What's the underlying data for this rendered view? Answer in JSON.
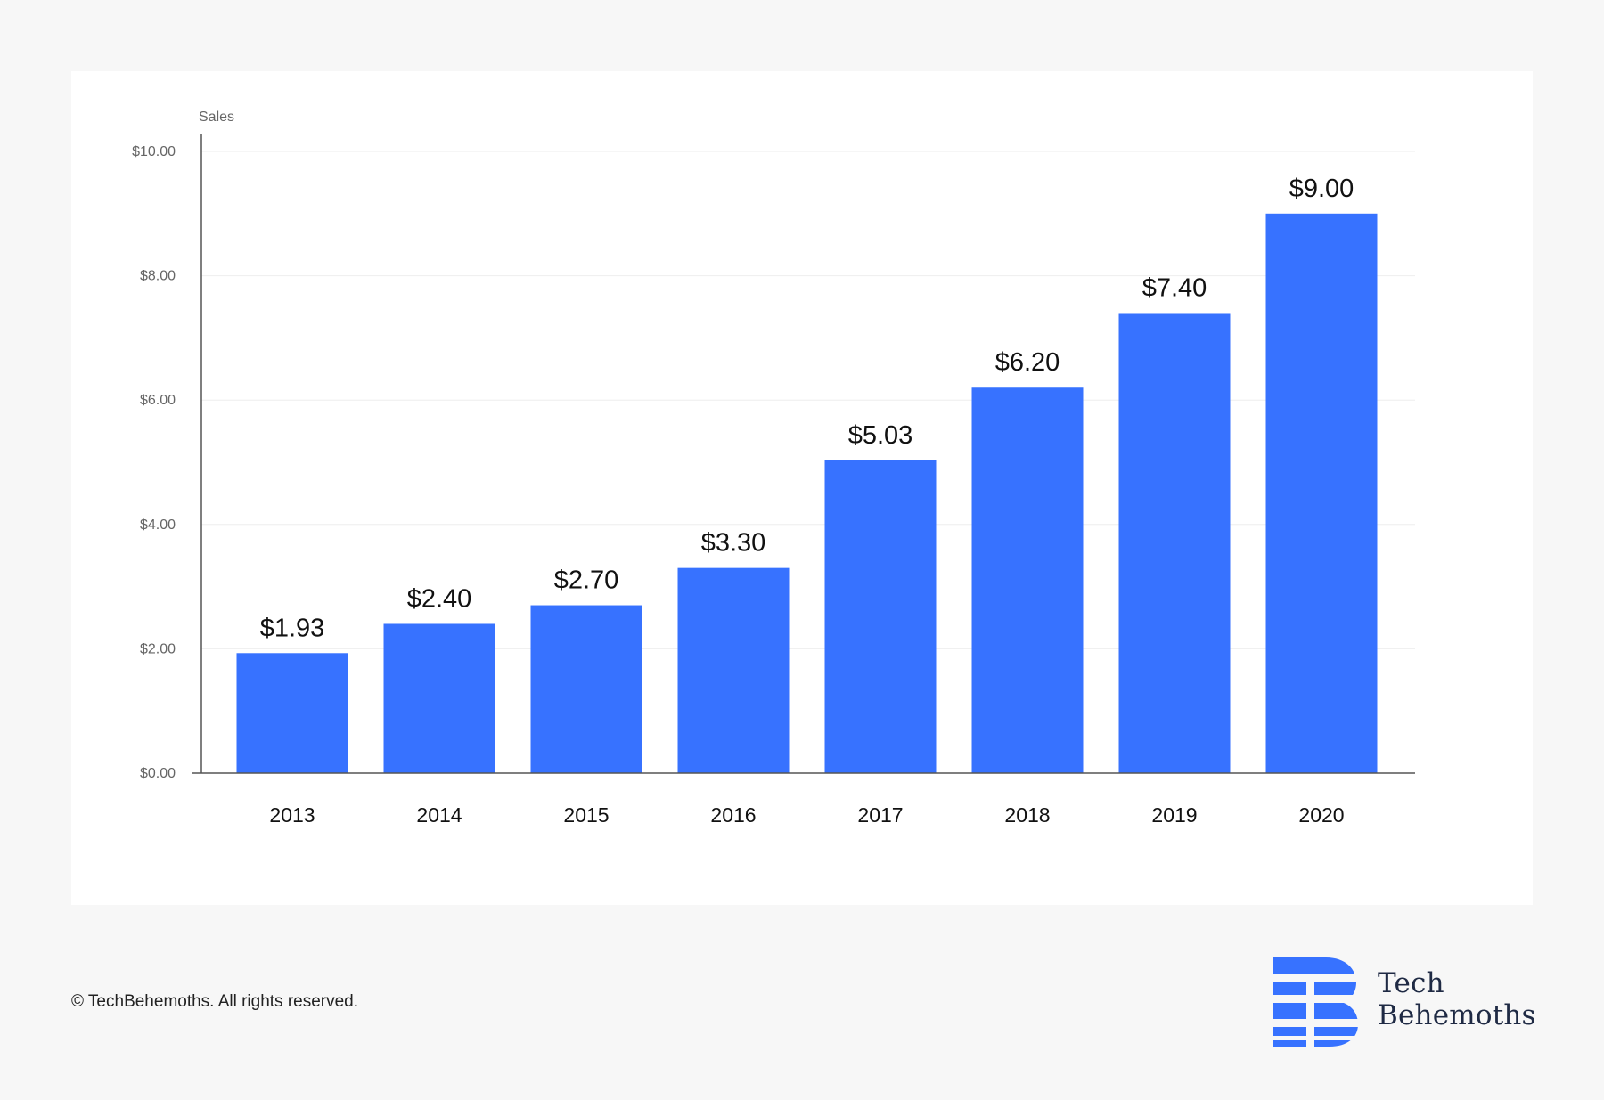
{
  "chart_data": {
    "type": "bar",
    "categories": [
      "2013",
      "2014",
      "2015",
      "2016",
      "2017",
      "2018",
      "2019",
      "2020"
    ],
    "values": [
      1.93,
      2.4,
      2.7,
      3.3,
      5.03,
      6.2,
      7.4,
      9.0
    ],
    "data_labels": [
      "$1.93",
      "$2.40",
      "$2.70",
      "$3.30",
      "$5.03",
      "$6.20",
      "$7.40",
      "$9.00"
    ],
    "title": "",
    "xlabel": "",
    "ylabel": "Sales",
    "ylim": [
      0,
      10
    ],
    "yticks": [
      0,
      2,
      4,
      6,
      8,
      10
    ],
    "ytick_labels": [
      "$0.00",
      "$2.00",
      "$4.00",
      "$6.00",
      "$8.00",
      "$10.00"
    ],
    "grid": true,
    "bar_color": "#3772ff",
    "gridline_color": "#eeeeee",
    "axis_color": "#555555"
  },
  "footer": {
    "copyright": "© TechBehemoths. All rights reserved."
  },
  "brand": {
    "line1": "Tech",
    "line2": "Behemoths",
    "mark_color": "#3772ff",
    "text_color": "#1f2a44",
    "icon": "techbehemoths-logo-icon"
  }
}
